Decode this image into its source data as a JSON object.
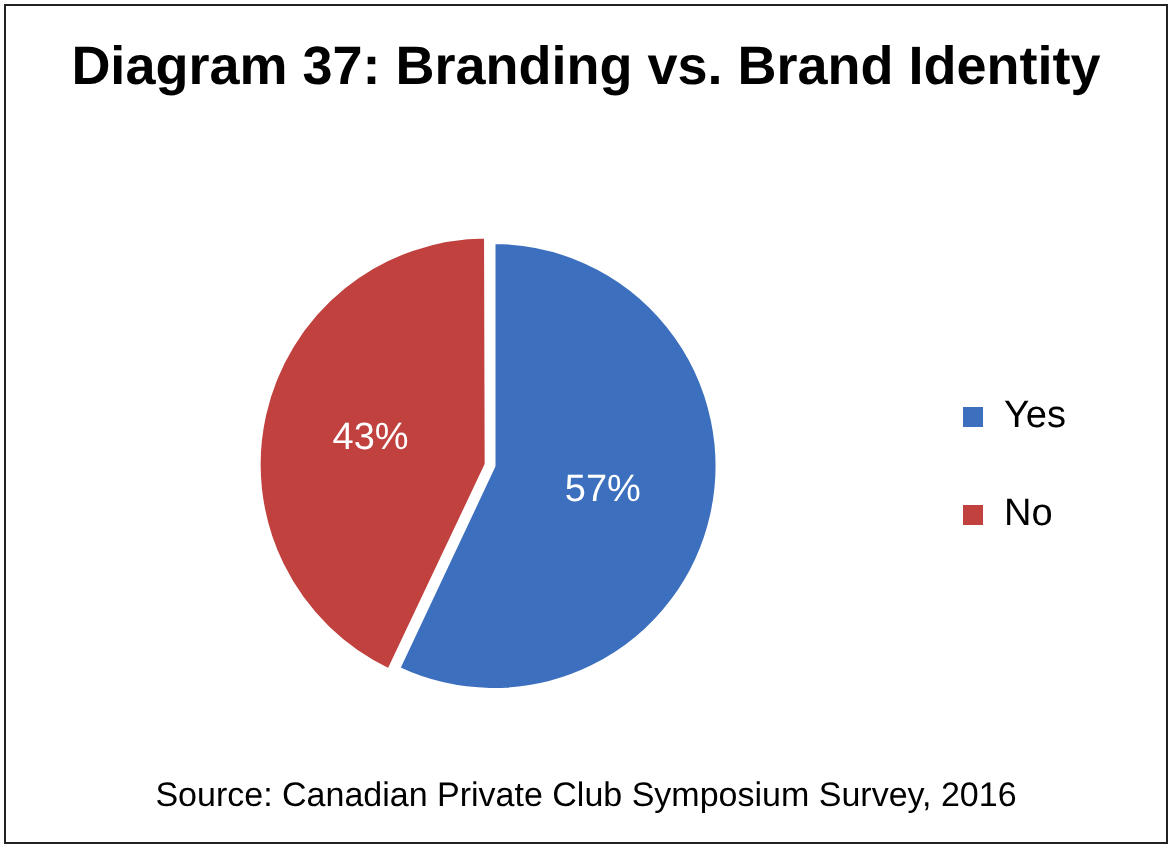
{
  "chart_data": {
    "type": "pie",
    "title": "Diagram 37: Branding vs. Brand Identity",
    "categories": [
      "Yes",
      "No"
    ],
    "values": [
      57,
      43
    ],
    "colors": [
      "#3c6fbd",
      "#c0413e"
    ],
    "value_labels": [
      "57%",
      "43%"
    ],
    "legend": "right",
    "annotations": [
      "Source: Canadian Private Club Symposium Survey, 2016"
    ]
  }
}
